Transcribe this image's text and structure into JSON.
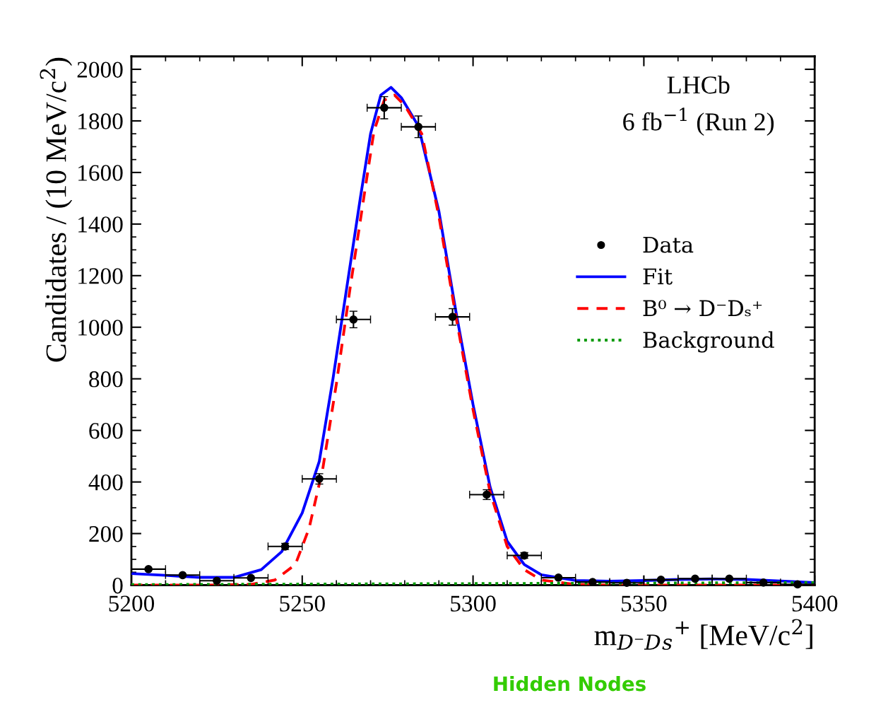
{
  "chart_data": {
    "type": "line",
    "xlabel": "m$_{D⁻D}$$_{s}$$^{+}$ [MeV/c$^{2}$]",
    "ylabel": "Candidates / (10 MeV/c$^{2}$)",
    "annotations": [
      "LHCb",
      "6 fb$^{−1}$ (Run 2)",
      "Hidden Nodes"
    ],
    "xlim": [
      5200,
      5400
    ],
    "xticks": [
      5200,
      5250,
      5300,
      5350,
      5400
    ],
    "ylim": [
      0,
      2050
    ],
    "yticks": [
      0,
      200,
      400,
      600,
      800,
      1000,
      1200,
      1400,
      1600,
      1800,
      2000
    ],
    "grid": false,
    "legend": "right",
    "series": [
      {
        "name": "Data",
        "type": "scatter",
        "color": "#000000",
        "marker": "circle",
        "x": [
          5205,
          5215,
          5225,
          5235,
          5245,
          5255,
          5265,
          5274,
          5284,
          5294,
          5304,
          5315,
          5325,
          5335,
          5345,
          5355,
          5365,
          5375,
          5385,
          5395
        ],
        "values": [
          62,
          39,
          17,
          28,
          150,
          412,
          1030,
          1851,
          1777,
          1040,
          351,
          115,
          29,
          12,
          9,
          21,
          25,
          25,
          10,
          3
        ],
        "errors": [
          null,
          null,
          null,
          null,
          12,
          20,
          32,
          43,
          42,
          32,
          19,
          11,
          null,
          null,
          null,
          null,
          null,
          null,
          null,
          null
        ],
        "xerrors": [
          5,
          5,
          5,
          5,
          5,
          5,
          5,
          5,
          5,
          5,
          5,
          5,
          5,
          5,
          5,
          5,
          5,
          5,
          5,
          5
        ]
      },
      {
        "name": "Fit",
        "type": "line",
        "color": "#0000ff",
        "line_style": "solid",
        "x": [
          5200,
          5210,
          5220,
          5230,
          5238,
          5244,
          5250,
          5255,
          5259,
          5263,
          5267,
          5270,
          5273,
          5276,
          5279,
          5284,
          5290,
          5295,
          5300,
          5305,
          5310,
          5315,
          5320,
          5330,
          5340,
          5350,
          5360,
          5370,
          5380,
          5390,
          5400
        ],
        "values": [
          45,
          38,
          30,
          30,
          60,
          130,
          280,
          480,
          800,
          1150,
          1500,
          1750,
          1900,
          1930,
          1890,
          1780,
          1450,
          1060,
          700,
          380,
          170,
          80,
          40,
          18,
          15,
          18,
          22,
          24,
          22,
          16,
          10
        ]
      },
      {
        "name": "B⁰ → D⁻Dₛ⁺",
        "type": "line",
        "color": "#ff0000",
        "line_style": "dashed",
        "x": [
          5200,
          5220,
          5235,
          5242,
          5248,
          5252,
          5256,
          5260,
          5264,
          5268,
          5271,
          5274,
          5277,
          5280,
          5285,
          5290,
          5295,
          5300,
          5305,
          5310,
          5315,
          5320,
          5330,
          5340,
          5400
        ],
        "values": [
          0,
          0,
          3,
          20,
          80,
          220,
          450,
          780,
          1150,
          1500,
          1760,
          1880,
          1900,
          1860,
          1750,
          1430,
          1040,
          680,
          360,
          150,
          60,
          20,
          3,
          0,
          0
        ]
      },
      {
        "name": "Background",
        "type": "line",
        "color": "#009900",
        "line_style": "dotted",
        "x": [
          5200,
          5400
        ],
        "values": [
          2,
          10
        ]
      }
    ]
  }
}
